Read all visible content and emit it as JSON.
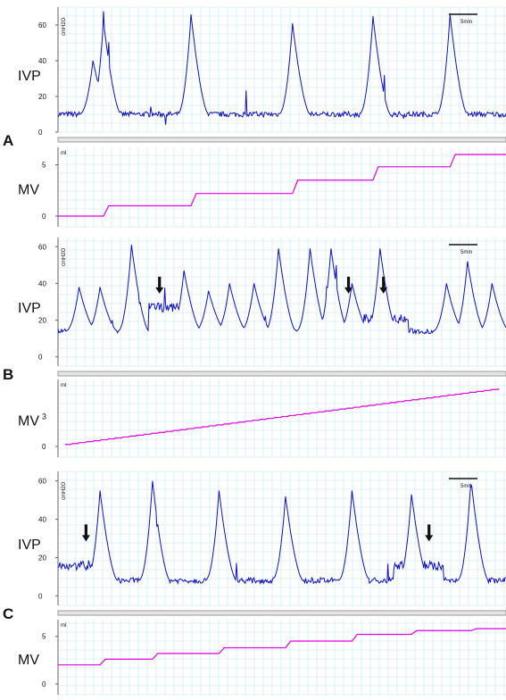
{
  "panels": [
    {
      "letter": "A",
      "ivp_label": "IVP",
      "mv_label": "MV",
      "ivp_unit": "cmH2O",
      "mv_unit": "ml",
      "scale_bar": "5min",
      "ivp_ticks": [
        0,
        20,
        40,
        60
      ],
      "mv_ticks": [
        0,
        5
      ],
      "ivp_ylim": [
        0,
        70
      ],
      "mv_ylim": [
        0,
        6
      ],
      "ivp_baseline": 10,
      "ivp_peaks": [
        {
          "t": 10,
          "v": 40
        },
        {
          "t": 13,
          "v": 62
        },
        {
          "t": 38,
          "v": 66
        },
        {
          "t": 67,
          "v": 61
        },
        {
          "t": 90,
          "v": 65
        },
        {
          "t": 112,
          "v": 66
        }
      ],
      "mv_steps": [
        {
          "t": 0,
          "v": 0.0
        },
        {
          "t": 13,
          "v": 1.0
        },
        {
          "t": 38,
          "v": 2.2
        },
        {
          "t": 67,
          "v": 3.5
        },
        {
          "t": 90,
          "v": 4.8
        },
        {
          "t": 112,
          "v": 6.0
        }
      ],
      "arrows": []
    },
    {
      "letter": "B",
      "ivp_label": "IVP",
      "mv_label": "MV",
      "mv_label_sup": "3",
      "ivp_unit": "cmH2O",
      "mv_unit": "ml",
      "scale_bar": "5min",
      "ivp_ticks": [
        0,
        20,
        40,
        60
      ],
      "mv_ticks": [
        0
      ],
      "ivp_ylim": [
        -5,
        65
      ],
      "mv_ylim": [
        0,
        6
      ],
      "ivp_baseline": 14,
      "ivp_peaks": [
        {
          "t": 6,
          "v": 38
        },
        {
          "t": 12,
          "v": 38
        },
        {
          "t": 21,
          "v": 61
        },
        {
          "t": 36,
          "v": 47
        },
        {
          "t": 43,
          "v": 36
        },
        {
          "t": 49,
          "v": 40
        },
        {
          "t": 56,
          "v": 40
        },
        {
          "t": 63,
          "v": 59
        },
        {
          "t": 72,
          "v": 59
        },
        {
          "t": 78,
          "v": 59
        },
        {
          "t": 84,
          "v": 40
        },
        {
          "t": 92,
          "v": 59
        },
        {
          "t": 111,
          "v": 40
        },
        {
          "t": 117,
          "v": 52
        },
        {
          "t": 124,
          "v": 40
        }
      ],
      "ivp_plateaus": [
        {
          "t0": 26,
          "t1": 36,
          "v": 27
        },
        {
          "t0": 85,
          "t1": 100,
          "v": 21
        }
      ],
      "mv_linear": {
        "v0": 0.2,
        "v1": 5.8
      },
      "arrows": [
        {
          "t": 29,
          "v": 33
        },
        {
          "t": 83,
          "v": 33
        },
        {
          "t": 93,
          "v": 33
        }
      ]
    },
    {
      "letter": "C",
      "ivp_label": "IVP",
      "mv_label": "MV",
      "ivp_unit": "cmH2O",
      "mv_unit": "ml",
      "scale_bar": "5min",
      "ivp_ticks": [
        0,
        20,
        40,
        60
      ],
      "mv_ticks": [
        0,
        5
      ],
      "ivp_ylim": [
        -5,
        65
      ],
      "mv_ylim": [
        0,
        6
      ],
      "ivp_baseline": 8,
      "ivp_peaks": [
        {
          "t": 12,
          "v": 55
        },
        {
          "t": 27,
          "v": 60
        },
        {
          "t": 46,
          "v": 55
        },
        {
          "t": 65,
          "v": 52
        },
        {
          "t": 84,
          "v": 55
        },
        {
          "t": 101,
          "v": 53
        },
        {
          "t": 118,
          "v": 61
        }
      ],
      "ivp_plateaus": [
        {
          "t0": 0,
          "t1": 10,
          "v": 16
        },
        {
          "t0": 96,
          "t1": 110,
          "v": 16
        }
      ],
      "mv_steps": [
        {
          "t": 0,
          "v": 2.0
        },
        {
          "t": 12,
          "v": 2.6
        },
        {
          "t": 27,
          "v": 3.2
        },
        {
          "t": 46,
          "v": 3.8
        },
        {
          "t": 65,
          "v": 4.5
        },
        {
          "t": 84,
          "v": 5.2
        },
        {
          "t": 101,
          "v": 5.6
        },
        {
          "t": 118,
          "v": 5.8
        }
      ],
      "arrows": [
        {
          "t": 8,
          "v": 27
        },
        {
          "t": 106,
          "v": 27
        }
      ]
    }
  ],
  "chart_data": [
    {
      "type": "line",
      "panel": "A",
      "series": [
        {
          "name": "IVP",
          "unit": "cmH2O",
          "baseline": 10,
          "peaks": [
            62,
            66,
            61,
            65,
            66
          ]
        },
        {
          "name": "MV",
          "unit": "ml",
          "steps": [
            0.0,
            1.0,
            2.2,
            3.5,
            4.8,
            6.0
          ]
        }
      ],
      "ylim_ivp": [
        0,
        70
      ],
      "ylim_mv": [
        0,
        6
      ],
      "grid": true
    },
    {
      "type": "line",
      "panel": "B",
      "series": [
        {
          "name": "IVP",
          "unit": "cmH2O",
          "baseline": 14,
          "peaks": [
            38,
            38,
            61,
            47,
            36,
            40,
            40,
            59,
            59,
            59,
            40,
            59,
            40,
            52,
            40
          ]
        },
        {
          "name": "MV",
          "unit": "ml",
          "range": [
            0.2,
            5.8
          ]
        }
      ],
      "ylim_ivp": [
        -5,
        65
      ],
      "ylim_mv": [
        0,
        6
      ],
      "grid": true
    },
    {
      "type": "line",
      "panel": "C",
      "series": [
        {
          "name": "IVP",
          "unit": "cmH2O",
          "baseline": 8,
          "peaks": [
            55,
            60,
            55,
            52,
            55,
            53,
            61
          ]
        },
        {
          "name": "MV",
          "unit": "ml",
          "steps": [
            2.0,
            2.6,
            3.2,
            3.8,
            4.5,
            5.2,
            5.6,
            5.8
          ]
        }
      ],
      "ylim_ivp": [
        -5,
        65
      ],
      "ylim_mv": [
        0,
        6
      ],
      "grid": true
    }
  ],
  "colors": {
    "ivp": "#1010cc",
    "mv": "#e000e0",
    "grid": "#bfe6ee",
    "axis": "#666666",
    "separator": "#999999"
  }
}
